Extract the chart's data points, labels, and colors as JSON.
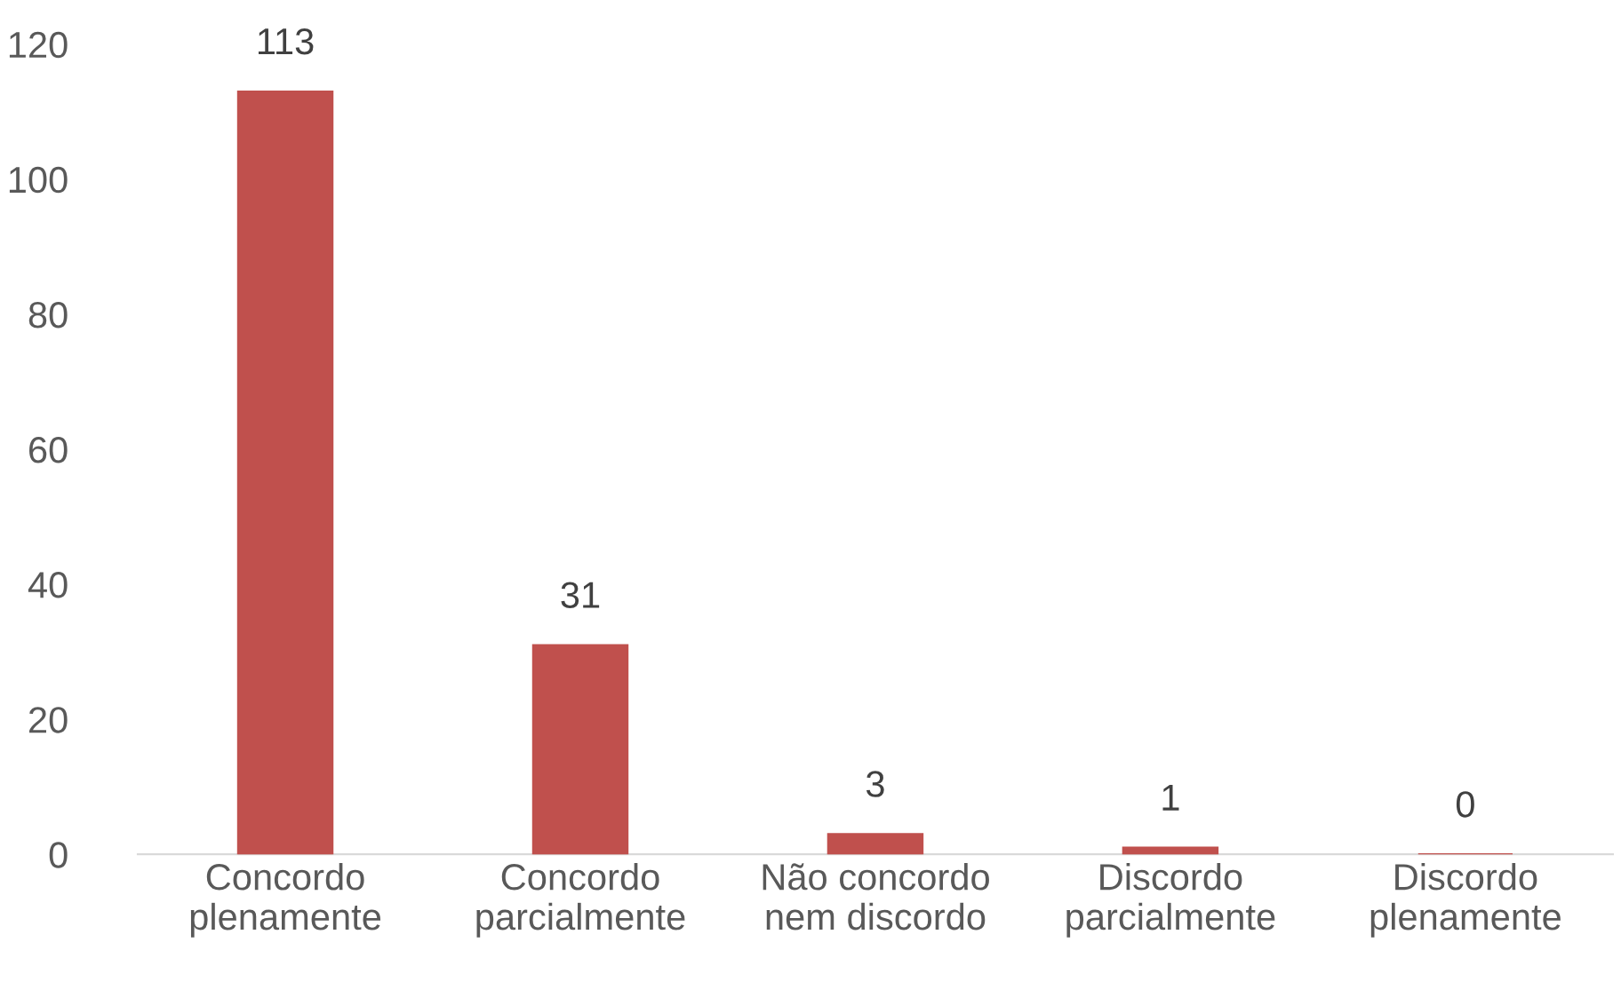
{
  "chart_data": {
    "type": "bar",
    "categories": [
      "Concordo\nplenamente",
      "Concordo\nparcialmente",
      "Não concordo\nnem discordo",
      "Discordo\nparcialmente",
      "Discordo\nplenamente"
    ],
    "values": [
      113,
      31,
      3,
      1,
      0
    ],
    "color": "#c0504d",
    "ylim": [
      0,
      120
    ],
    "yticks": [
      0,
      20,
      40,
      60,
      80,
      100,
      120
    ],
    "data_labels": true,
    "grid": false,
    "legend": false
  }
}
